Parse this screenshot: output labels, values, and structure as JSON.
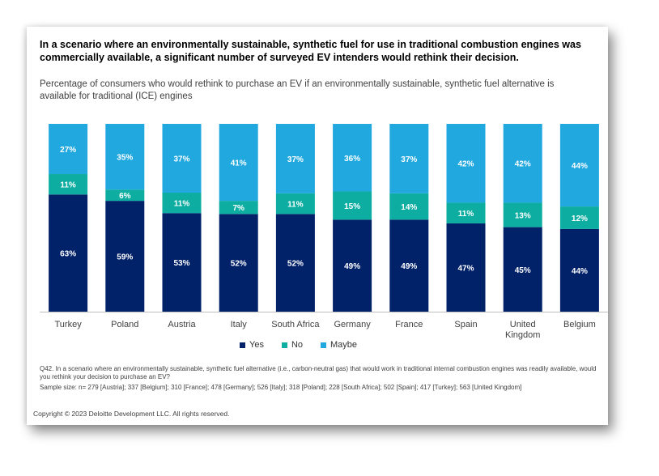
{
  "headline": "In a scenario where an environmentally sustainable, synthetic fuel for use in traditional combustion engines was commercially available, a significant number of surveyed EV intenders would rethink their decision.",
  "subtitle": "Percentage of consumers who would rethink to purchase an EV if an environmentally sustainable, synthetic fuel alternative is available for traditional (ICE) engines",
  "chart_data": {
    "type": "bar",
    "stacked": true,
    "orientation": "vertical",
    "categories": [
      "Turkey",
      "Poland",
      "Austria",
      "Italy",
      "South Africa",
      "Germany",
      "France",
      "Spain",
      "United Kingdom",
      "Belgium"
    ],
    "category_lines": [
      [
        "Turkey"
      ],
      [
        "Poland"
      ],
      [
        "Austria"
      ],
      [
        "Italy"
      ],
      [
        "South Africa"
      ],
      [
        "Germany"
      ],
      [
        "France"
      ],
      [
        "Spain"
      ],
      [
        "United",
        "Kingdom"
      ],
      [
        "Belgium"
      ]
    ],
    "series": [
      {
        "name": "Yes",
        "color": "#012169",
        "values": [
          63,
          59,
          53,
          52,
          52,
          49,
          49,
          47,
          45,
          44
        ]
      },
      {
        "name": "No",
        "color": "#0DADA2",
        "values": [
          11,
          6,
          11,
          7,
          11,
          15,
          14,
          11,
          13,
          12
        ]
      },
      {
        "name": "Maybe",
        "color": "#21A8DF",
        "values": [
          27,
          35,
          37,
          41,
          37,
          36,
          37,
          42,
          42,
          44
        ]
      }
    ],
    "label_suffix": "%",
    "ylim": [
      0,
      100
    ],
    "grid": false,
    "legend_position": "bottom-center"
  },
  "legend": {
    "yes": "Yes",
    "no": "No",
    "maybe": "Maybe"
  },
  "colors": {
    "yes": "#012169",
    "no": "#0DADA2",
    "maybe": "#21A8DF"
  },
  "footnote": {
    "question": "Q42. In a scenario where an environmentally sustainable, synthetic fuel alternative (i.e., carbon-neutral gas) that would work in traditional internal combustion engines was readily available, would you rethink your decision to purchase an EV?",
    "sample": "Sample size: n= 279 [Austria]; 337 [Belgium]; 310 [France]; 478 [Germany]; 526 [Italy]; 318 [Poland]; 228 [South Africa]; 502 [Spain]; 417 [Turkey]; 563 [United Kingdom]"
  },
  "copyright": "Copyright © 2023 Deloitte Development LLC. All rights reserved."
}
